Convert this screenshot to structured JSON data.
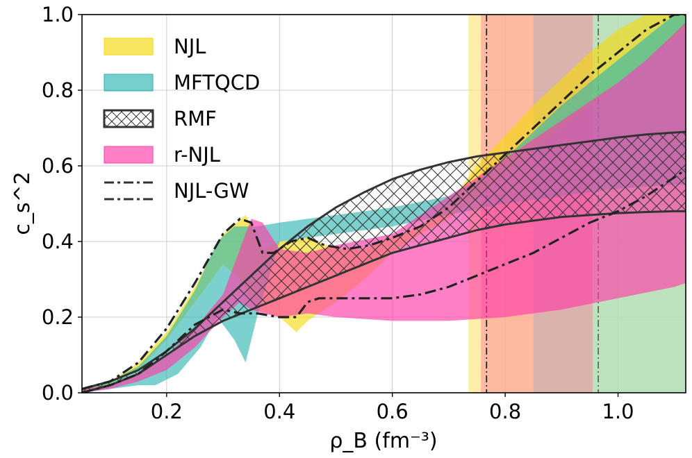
{
  "chart_data": {
    "type": "area",
    "xlabel": "ρ_B (fm⁻³)",
    "ylabel": "c_s^2",
    "xlim": [
      0.05,
      1.12
    ],
    "ylim": [
      0.0,
      1.0
    ],
    "grid": true,
    "legend_position": "top-left",
    "x_ticks": [
      {
        "value": 0.2,
        "label": "0.2"
      },
      {
        "value": 0.4,
        "label": "0.4"
      },
      {
        "value": 0.6,
        "label": "0.6"
      },
      {
        "value": 0.8,
        "label": "0.8"
      },
      {
        "value": 1.0,
        "label": "1.0"
      }
    ],
    "y_ticks": [
      {
        "value": 0.0,
        "label": "0.0"
      },
      {
        "value": 0.2,
        "label": "0.2"
      },
      {
        "value": 0.4,
        "label": "0.4"
      },
      {
        "value": 0.6,
        "label": "0.6"
      },
      {
        "value": 0.8,
        "label": "0.8"
      },
      {
        "value": 1.0,
        "label": "1.0"
      }
    ],
    "legend": [
      {
        "label": "NJL",
        "kind": "fill",
        "color": "#f5d90a"
      },
      {
        "label": "MFTQCD",
        "kind": "fill",
        "color": "#2cb5b0"
      },
      {
        "label": "RMF",
        "kind": "hatch",
        "color": "#333333"
      },
      {
        "label": "r-NJL",
        "kind": "fill",
        "color": "#ff3ca8"
      },
      {
        "label": "NJL-GW",
        "kind": "dashdot",
        "color": "#333333"
      }
    ],
    "vertical_bands": [
      {
        "name": "NJL",
        "x0": 0.735,
        "x1": 1.12,
        "color": "#fde57a",
        "opacity": 0.65
      },
      {
        "name": "MFTQCD",
        "x0": 0.85,
        "x1": 1.12,
        "color": "#7ed6d2",
        "opacity": 0.5
      },
      {
        "name": "r-NJL",
        "x0": 0.757,
        "x1": 0.955,
        "color": "#ff7a9a",
        "opacity": 0.45
      }
    ],
    "vertical_lines": [
      {
        "x": 0.767,
        "style": "dashdot",
        "color": "#111111"
      },
      {
        "x": 0.965,
        "style": "dashdot",
        "color": "#555555"
      }
    ],
    "series": [
      {
        "name": "NJL",
        "color": "#f5d90a",
        "opacity": 0.62,
        "upper": {
          "x": [
            0.05,
            0.1,
            0.15,
            0.2,
            0.25,
            0.3,
            0.34,
            0.37,
            0.4,
            0.45,
            0.5,
            0.55,
            0.6,
            0.65,
            0.7,
            0.75,
            0.8,
            0.85,
            0.9,
            0.95,
            1.0,
            1.05,
            1.1,
            1.12
          ],
          "y": [
            0.01,
            0.03,
            0.08,
            0.16,
            0.28,
            0.42,
            0.47,
            0.38,
            0.4,
            0.41,
            0.38,
            0.38,
            0.41,
            0.44,
            0.5,
            0.6,
            0.68,
            0.76,
            0.83,
            0.9,
            0.96,
            1.0,
            1.0,
            1.0
          ]
        },
        "lower": {
          "x": [
            0.05,
            0.1,
            0.15,
            0.2,
            0.25,
            0.3,
            0.33,
            0.36,
            0.4,
            0.43,
            0.45,
            0.5,
            0.55,
            0.6,
            0.65,
            0.7,
            0.75,
            0.8,
            0.85,
            0.9,
            0.95,
            1.0,
            1.05,
            1.1,
            1.12
          ],
          "y": [
            0.0,
            0.02,
            0.06,
            0.14,
            0.24,
            0.34,
            0.3,
            0.22,
            0.2,
            0.16,
            0.19,
            0.24,
            0.3,
            0.37,
            0.42,
            0.46,
            0.52,
            0.58,
            0.64,
            0.7,
            0.76,
            0.82,
            0.88,
            0.94,
            0.96
          ]
        }
      },
      {
        "name": "MFTQCD",
        "color": "#2cb5b0",
        "opacity": 0.62,
        "upper": {
          "x": [
            0.05,
            0.1,
            0.15,
            0.2,
            0.25,
            0.29,
            0.32,
            0.36,
            0.4,
            0.5,
            0.6,
            0.7,
            0.75,
            0.8,
            0.9,
            1.0,
            1.05,
            1.1,
            1.12
          ],
          "y": [
            0.01,
            0.03,
            0.07,
            0.15,
            0.27,
            0.4,
            0.44,
            0.44,
            0.45,
            0.47,
            0.49,
            0.52,
            0.56,
            0.62,
            0.76,
            0.88,
            0.94,
            1.0,
            1.0
          ]
        },
        "lower": {
          "x": [
            0.05,
            0.1,
            0.15,
            0.18,
            0.22,
            0.26,
            0.29,
            0.32,
            0.34,
            0.36,
            0.4,
            0.5,
            0.6,
            0.7,
            0.8,
            0.9,
            1.0,
            1.1,
            1.12
          ],
          "y": [
            0.0,
            0.01,
            0.02,
            0.02,
            0.05,
            0.12,
            0.2,
            0.14,
            0.08,
            0.2,
            0.4,
            0.42,
            0.44,
            0.47,
            0.5,
            0.52,
            0.54,
            0.55,
            0.55
          ]
        }
      },
      {
        "name": "r-NJL",
        "color": "#ff3ca8",
        "opacity": 0.65,
        "upper": {
          "x": [
            0.05,
            0.1,
            0.15,
            0.2,
            0.25,
            0.3,
            0.33,
            0.35,
            0.37,
            0.4,
            0.45,
            0.5,
            0.6,
            0.7,
            0.8,
            0.9,
            1.0,
            1.05,
            1.1,
            1.12
          ],
          "y": [
            0.01,
            0.02,
            0.05,
            0.1,
            0.17,
            0.26,
            0.38,
            0.46,
            0.45,
            0.38,
            0.37,
            0.39,
            0.42,
            0.52,
            0.62,
            0.72,
            0.82,
            0.88,
            0.95,
            0.98
          ]
        },
        "lower": {
          "x": [
            0.05,
            0.1,
            0.15,
            0.2,
            0.25,
            0.3,
            0.33,
            0.35,
            0.37,
            0.4,
            0.45,
            0.5,
            0.6,
            0.7,
            0.8,
            0.9,
            1.0,
            1.1,
            1.12
          ],
          "y": [
            0.0,
            0.01,
            0.03,
            0.06,
            0.12,
            0.2,
            0.24,
            0.22,
            0.21,
            0.2,
            0.21,
            0.2,
            0.19,
            0.19,
            0.2,
            0.22,
            0.25,
            0.28,
            0.29
          ]
        }
      },
      {
        "name": "RMF",
        "color": "#333333",
        "hatch": true,
        "upper": {
          "x": [
            0.05,
            0.1,
            0.15,
            0.2,
            0.25,
            0.3,
            0.35,
            0.4,
            0.45,
            0.5,
            0.55,
            0.6,
            0.65,
            0.7,
            0.75,
            0.8,
            0.85,
            0.9,
            0.95,
            1.0,
            1.05,
            1.1,
            1.12
          ],
          "y": [
            0.01,
            0.03,
            0.06,
            0.11,
            0.17,
            0.24,
            0.31,
            0.38,
            0.44,
            0.49,
            0.53,
            0.565,
            0.59,
            0.61,
            0.625,
            0.635,
            0.645,
            0.655,
            0.665,
            0.675,
            0.683,
            0.688,
            0.69
          ]
        },
        "lower": {
          "x": [
            0.05,
            0.1,
            0.15,
            0.2,
            0.25,
            0.3,
            0.35,
            0.4,
            0.45,
            0.5,
            0.55,
            0.6,
            0.65,
            0.7,
            0.75,
            0.8,
            0.85,
            0.9,
            0.95,
            1.0,
            1.05,
            1.1,
            1.12
          ],
          "y": [
            0.0,
            0.02,
            0.05,
            0.1,
            0.15,
            0.19,
            0.22,
            0.25,
            0.28,
            0.31,
            0.34,
            0.37,
            0.39,
            0.41,
            0.43,
            0.445,
            0.455,
            0.465,
            0.47,
            0.475,
            0.478,
            0.48,
            0.48
          ]
        },
        "edge_lines": [
          {
            "x": [
              0.05,
              0.1,
              0.15,
              0.2,
              0.25,
              0.3,
              0.35,
              0.4,
              0.45,
              0.5,
              0.55,
              0.6,
              0.65,
              0.7,
              0.75,
              0.8,
              0.85,
              0.9,
              0.95,
              1.0,
              1.05,
              1.1,
              1.12
            ],
            "y": [
              0.0,
              0.02,
              0.05,
              0.1,
              0.15,
              0.19,
              0.22,
              0.25,
              0.28,
              0.31,
              0.34,
              0.37,
              0.39,
              0.41,
              0.43,
              0.445,
              0.455,
              0.465,
              0.47,
              0.475,
              0.478,
              0.48,
              0.48
            ]
          },
          {
            "x": [
              0.05,
              0.1,
              0.15,
              0.2,
              0.25,
              0.3,
              0.35,
              0.4,
              0.45,
              0.5,
              0.55,
              0.6,
              0.65,
              0.7,
              0.75,
              0.8,
              0.85,
              0.9,
              0.95,
              1.0,
              1.05,
              1.1,
              1.12
            ],
            "y": [
              0.01,
              0.03,
              0.06,
              0.11,
              0.17,
              0.24,
              0.31,
              0.38,
              0.44,
              0.49,
              0.53,
              0.565,
              0.59,
              0.61,
              0.625,
              0.635,
              0.645,
              0.655,
              0.665,
              0.675,
              0.683,
              0.688,
              0.69
            ]
          }
        ]
      },
      {
        "name": "NJL-GW",
        "color": "#222222",
        "style": "dashdot",
        "lines": [
          {
            "x": [
              0.05,
              0.1,
              0.15,
              0.2,
              0.25,
              0.3,
              0.33,
              0.35,
              0.37,
              0.39,
              0.42,
              0.45,
              0.48,
              0.52,
              0.56,
              0.6,
              0.65,
              0.7,
              0.75,
              0.8,
              0.85,
              0.9,
              0.95,
              1.0,
              1.05,
              1.1,
              1.12
            ],
            "y": [
              0.01,
              0.03,
              0.08,
              0.17,
              0.29,
              0.42,
              0.46,
              0.45,
              0.37,
              0.37,
              0.4,
              0.41,
              0.39,
              0.38,
              0.39,
              0.41,
              0.44,
              0.49,
              0.56,
              0.63,
              0.7,
              0.77,
              0.84,
              0.9,
              0.96,
              1.0,
              1.0
            ]
          },
          {
            "x": [
              0.05,
              0.1,
              0.15,
              0.2,
              0.25,
              0.3,
              0.33,
              0.36,
              0.4,
              0.43,
              0.45,
              0.47,
              0.5,
              0.55,
              0.6,
              0.65,
              0.7,
              0.75,
              0.8,
              0.85,
              0.9,
              0.95,
              1.0,
              1.05,
              1.1,
              1.12
            ],
            "y": [
              0.0,
              0.02,
              0.05,
              0.11,
              0.18,
              0.22,
              0.21,
              0.21,
              0.2,
              0.2,
              0.24,
              0.25,
              0.25,
              0.25,
              0.25,
              0.26,
              0.28,
              0.31,
              0.34,
              0.37,
              0.41,
              0.45,
              0.48,
              0.52,
              0.57,
              0.59
            ]
          }
        ]
      }
    ]
  }
}
